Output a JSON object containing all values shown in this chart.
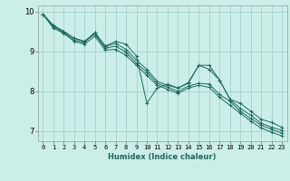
{
  "xlabel": "Humidex (Indice chaleur)",
  "bg_color": "#cceee8",
  "grid_color": "#aad4ce",
  "line_color": "#1a6b5a",
  "xlim": [
    -0.5,
    23.5
  ],
  "ylim": [
    6.75,
    10.15
  ],
  "yticks": [
    7,
    8,
    9,
    10
  ],
  "lines": [
    [
      9.93,
      9.62,
      9.47,
      9.28,
      9.22,
      9.47,
      9.13,
      9.25,
      9.18,
      8.88,
      7.7,
      8.08,
      8.18,
      8.08,
      8.22,
      8.65,
      8.65,
      8.28,
      7.8,
      7.7,
      7.5,
      7.3,
      7.22,
      7.1
    ],
    [
      9.93,
      9.65,
      9.5,
      9.33,
      9.25,
      9.47,
      9.12,
      9.2,
      9.05,
      8.78,
      8.55,
      8.25,
      8.15,
      8.08,
      8.2,
      8.65,
      8.55,
      8.28,
      7.8,
      7.57,
      7.4,
      7.2,
      7.1,
      7.02
    ],
    [
      9.93,
      9.65,
      9.5,
      9.33,
      9.25,
      9.43,
      9.08,
      9.13,
      8.98,
      8.7,
      8.48,
      8.2,
      8.1,
      8.0,
      8.13,
      8.2,
      8.18,
      7.92,
      7.75,
      7.5,
      7.32,
      7.15,
      7.05,
      6.95
    ],
    [
      9.93,
      9.58,
      9.45,
      9.25,
      9.18,
      9.38,
      9.03,
      9.05,
      8.9,
      8.65,
      8.4,
      8.15,
      8.05,
      7.95,
      8.08,
      8.15,
      8.1,
      7.85,
      7.65,
      7.45,
      7.25,
      7.08,
      6.98,
      6.88
    ]
  ]
}
